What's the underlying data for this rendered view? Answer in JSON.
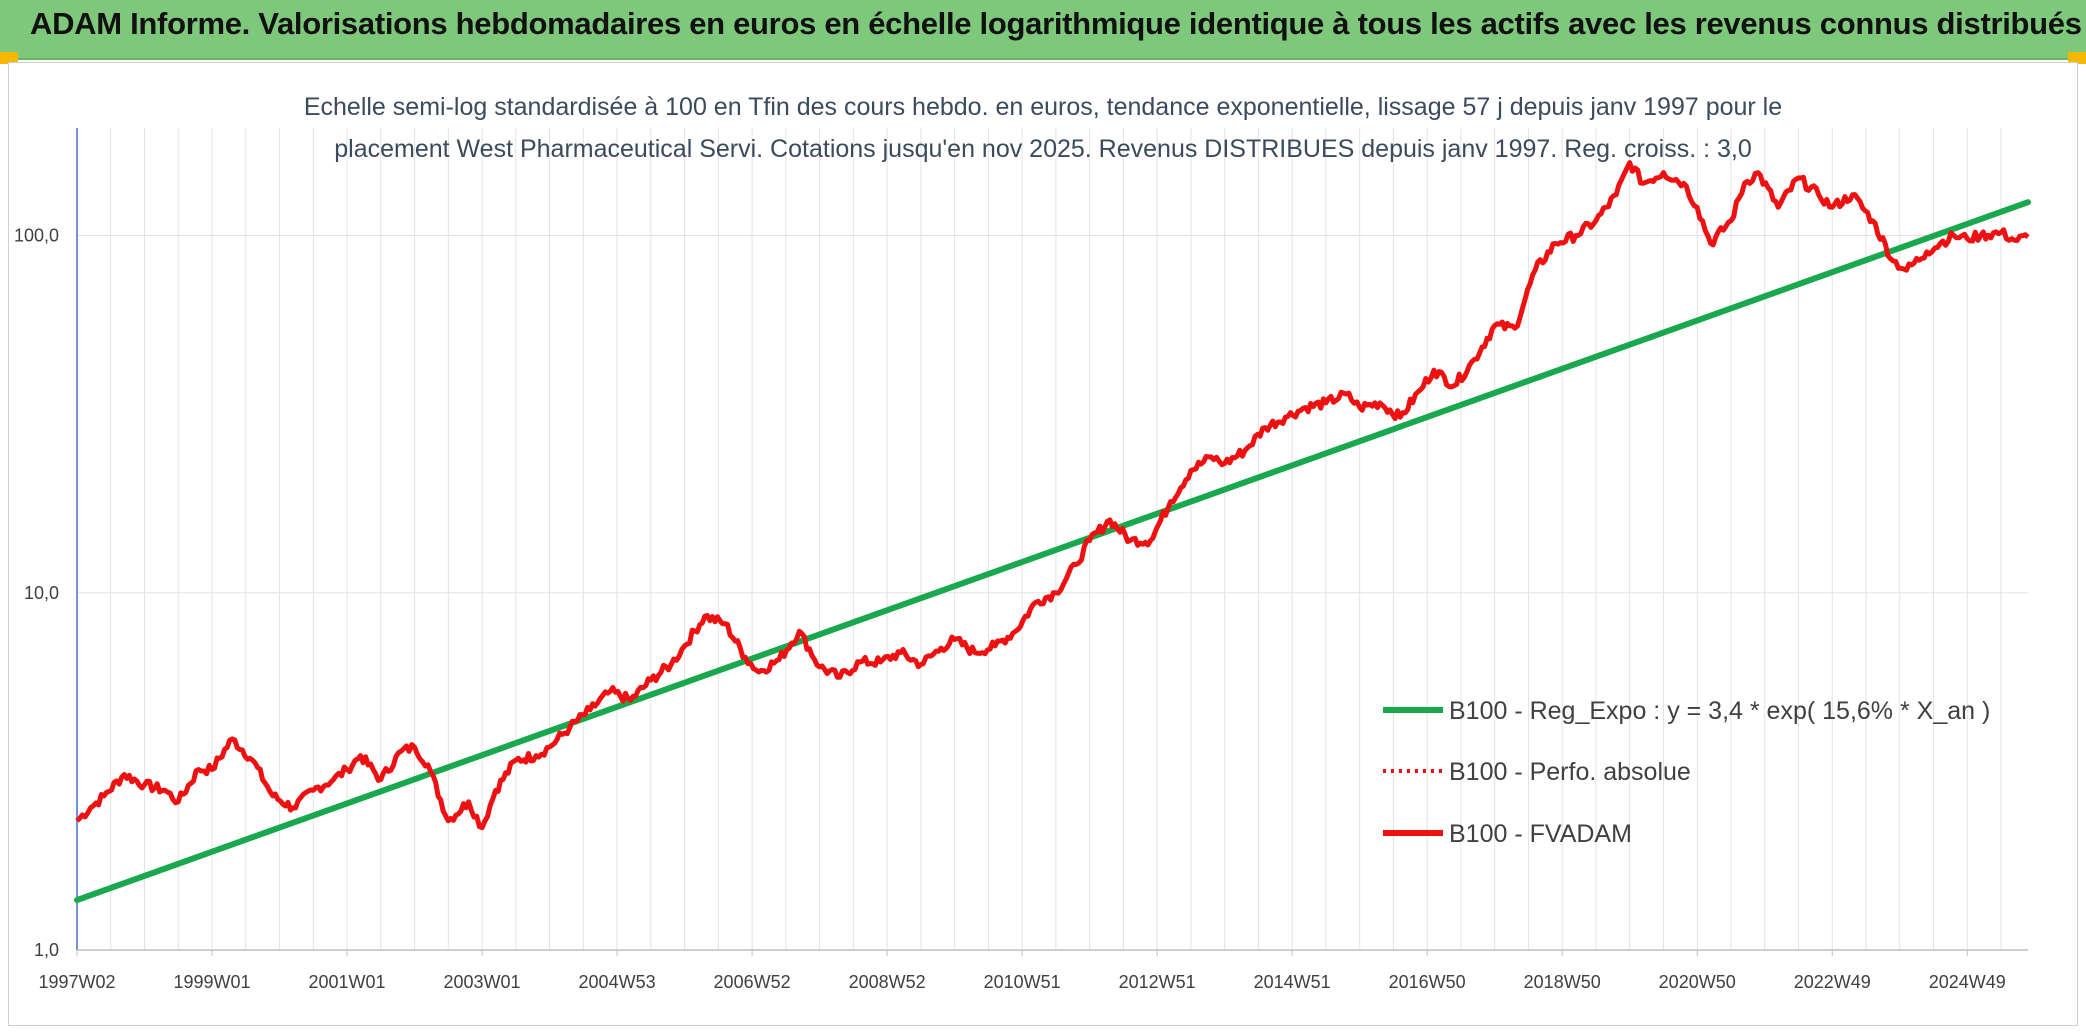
{
  "header": {
    "title": "ADAM Informe. Valorisations hebdomadaires en euros en échelle logarithmique identique à tous les actifs avec les revenus connus distribués"
  },
  "colors": {
    "banner": "#7dc87a",
    "trend": "#1aa84f",
    "fvadam": "#ee1111",
    "grid": "#e3e3e3"
  },
  "chart_data": {
    "type": "line",
    "subtitle_lines": [
      "Echelle semi-log standardisée à 100 en Tfin des cours hebdo. en euros, tendance exponentielle, lissage 57 j depuis janv 1997 pour le",
      "placement West Pharmaceutical Servi. Cotations jusqu'en nov 2025. Revenus DISTRIBUES depuis janv 1997. Reg. croiss. : 3,0"
    ],
    "y_scale": "log",
    "ylim": [
      1,
      200
    ],
    "xlim": [
      1997.0,
      2025.9
    ],
    "y_ticks": [
      {
        "value": 1,
        "label": "1,0"
      },
      {
        "value": 10,
        "label": "10,0"
      },
      {
        "value": 100,
        "label": "100,0"
      }
    ],
    "x_ticks": [
      {
        "value": 1997.0,
        "label": "1997W02"
      },
      {
        "value": 1999.0,
        "label": "1999W01"
      },
      {
        "value": 2001.0,
        "label": "2001W01"
      },
      {
        "value": 2003.0,
        "label": "2003W01"
      },
      {
        "value": 2005.0,
        "label": "2004W53"
      },
      {
        "value": 2007.0,
        "label": "2006W52"
      },
      {
        "value": 2009.0,
        "label": "2008W52"
      },
      {
        "value": 2011.0,
        "label": "2010W51"
      },
      {
        "value": 2013.0,
        "label": "2012W51"
      },
      {
        "value": 2015.0,
        "label": "2014W51"
      },
      {
        "value": 2017.0,
        "label": "2016W50"
      },
      {
        "value": 2019.0,
        "label": "2018W50"
      },
      {
        "value": 2021.0,
        "label": "2020W50"
      },
      {
        "value": 2023.0,
        "label": "2022W49"
      },
      {
        "value": 2025.0,
        "label": "2024W49"
      }
    ],
    "grid": true,
    "legend_position": "bottom-right",
    "series": [
      {
        "name": "B100 - Reg_Expo : y = 3,4 * exp( 15,6% *  X_an )",
        "style": "solid",
        "x": [
          1997.0,
          2025.9
        ],
        "y": [
          1.38,
          124
        ]
      },
      {
        "name": "B100 - Perfo. absolue",
        "style": "dotted",
        "x": [],
        "y": []
      },
      {
        "name": "B100 - FVADAM",
        "style": "solid",
        "x": [
          1997.0,
          1997.2,
          1997.4,
          1997.7,
          1998.0,
          1998.3,
          1998.5,
          1998.8,
          1999.0,
          1999.3,
          1999.6,
          1999.9,
          2000.2,
          2000.5,
          2000.8,
          2001.0,
          2001.2,
          2001.5,
          2001.8,
          2002.0,
          2002.2,
          2002.5,
          2002.8,
          2003.0,
          2003.2,
          2003.5,
          2003.8,
          2004.0,
          2004.3,
          2004.6,
          2004.9,
          2005.2,
          2005.5,
          2005.8,
          2006.0,
          2006.3,
          2006.6,
          2006.9,
          2007.1,
          2007.4,
          2007.7,
          2008.0,
          2008.3,
          2008.6,
          2008.9,
          2009.2,
          2009.5,
          2009.8,
          2010.0,
          2010.3,
          2010.6,
          2010.9,
          2011.2,
          2011.5,
          2011.8,
          2012.0,
          2012.3,
          2012.6,
          2012.9,
          2013.2,
          2013.5,
          2013.8,
          2014.0,
          2014.3,
          2014.6,
          2014.9,
          2015.2,
          2015.5,
          2015.8,
          2016.0,
          2016.3,
          2016.6,
          2016.9,
          2017.1,
          2017.4,
          2017.7,
          2018.0,
          2018.3,
          2018.6,
          2018.9,
          2019.2,
          2019.5,
          2019.8,
          2020.0,
          2020.2,
          2020.5,
          2020.8,
          2021.0,
          2021.2,
          2021.5,
          2021.7,
          2021.9,
          2022.2,
          2022.5,
          2022.8,
          2023.0,
          2023.3,
          2023.6,
          2023.9,
          2024.1,
          2024.4,
          2024.6,
          2024.8,
          2025.0,
          2025.2,
          2025.5,
          2025.7,
          2025.9
        ],
        "y": [
          2.3,
          2.5,
          2.7,
          3.1,
          2.9,
          2.8,
          2.6,
          3.2,
          3.2,
          3.9,
          3.4,
          2.7,
          2.5,
          2.8,
          3.0,
          3.2,
          3.5,
          3.0,
          3.6,
          3.7,
          3.3,
          2.3,
          2.6,
          2.2,
          2.8,
          3.4,
          3.5,
          3.7,
          4.2,
          4.7,
          5.3,
          5.0,
          5.7,
          6.3,
          7.1,
          8.6,
          8.2,
          6.6,
          6.0,
          6.5,
          7.8,
          6.2,
          5.8,
          6.4,
          6.4,
          6.8,
          6.3,
          7.0,
          7.4,
          6.8,
          7.1,
          7.8,
          9.4,
          10.0,
          12.0,
          14.0,
          16.0,
          14.0,
          14.0,
          18.0,
          22.0,
          24.0,
          23.0,
          25.0,
          29.0,
          31.0,
          33.0,
          34.0,
          36.0,
          33.0,
          34.0,
          31.0,
          37.0,
          42.0,
          38.0,
          45.0,
          56.0,
          55.0,
          80.0,
          95.0,
          100.0,
          110.0,
          130.0,
          160.0,
          140.0,
          150.0,
          140.0,
          120.0,
          95.0,
          110.0,
          140.0,
          150.0,
          120.0,
          145.0,
          130.0,
          120.0,
          130.0,
          110.0,
          85.0,
          80.0,
          90.0,
          95.0,
          100.0,
          98.0,
          100.0,
          102.0,
          97.0,
          99.0
        ]
      }
    ]
  }
}
